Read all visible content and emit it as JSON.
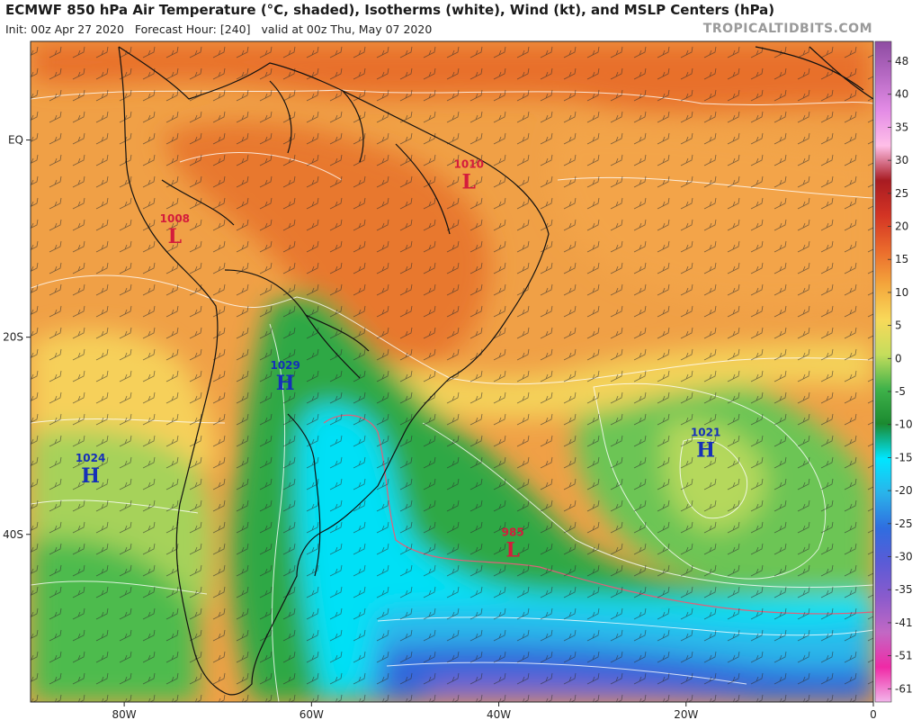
{
  "header": {
    "title": "ECMWF 850 hPa Air Temperature (°C, shaded), Isotherms (white), Wind (kt), and MSLP Centers (hPa)",
    "init": "Init: 00z Apr 27 2020",
    "forecast_hour": "Forecast Hour: [240]",
    "valid": "valid at 00z Thu, May 07 2020",
    "brand": "TROPICALTIDBITS.COM"
  },
  "map": {
    "lon_range": [
      -90,
      0
    ],
    "lat_range": [
      -57,
      10
    ],
    "lon_ticks": [
      {
        "value": -80,
        "label": "80W"
      },
      {
        "value": -60,
        "label": "60W"
      },
      {
        "value": -40,
        "label": "40W"
      },
      {
        "value": -20,
        "label": "20W"
      },
      {
        "value": 0,
        "label": "0"
      }
    ],
    "lat_ticks": [
      {
        "value": 0,
        "label": "EQ"
      },
      {
        "value": -20,
        "label": "20S"
      },
      {
        "value": -40,
        "label": "40S"
      }
    ]
  },
  "pressure_centers": [
    {
      "type": "L",
      "value": "1010",
      "lon": -43.2,
      "lat": -4.3,
      "color": "#d41c3c"
    },
    {
      "type": "L",
      "value": "1008",
      "lon": -74.6,
      "lat": -9.8,
      "color": "#d41c3c"
    },
    {
      "type": "H",
      "value": "1029",
      "lon": -62.8,
      "lat": -24.7,
      "color": "#1530b8"
    },
    {
      "type": "H",
      "value": "1024",
      "lon": -83.6,
      "lat": -34.1,
      "color": "#1530b8"
    },
    {
      "type": "H",
      "value": "1021",
      "lon": -17.9,
      "lat": -31.5,
      "color": "#1530b8"
    },
    {
      "type": "L",
      "value": "985",
      "lon": -38.5,
      "lat": -41.6,
      "color": "#d41c3c"
    }
  ],
  "colorbar": {
    "labels": [
      "48",
      "40",
      "35",
      "30",
      "25",
      "20",
      "15",
      "10",
      "5",
      "0",
      "-5",
      "-10",
      "-15",
      "-20",
      "-25",
      "-30",
      "-35",
      "-41",
      "-51",
      "-61"
    ],
    "colors": [
      "#8e4ca2",
      "#b76ac4",
      "#e48ce6",
      "#ffbfe8",
      "#a81b22",
      "#d33424",
      "#ea6a2c",
      "#f4a63c",
      "#f8d95a",
      "#c5dd5c",
      "#3fb24a",
      "#1b8a30",
      "#00e6ff",
      "#2ab3ea",
      "#2f6de0",
      "#5b5bd6",
      "#8b5bcc",
      "#c268c4",
      "#ef2aa6",
      "#f2b5ea"
    ]
  }
}
